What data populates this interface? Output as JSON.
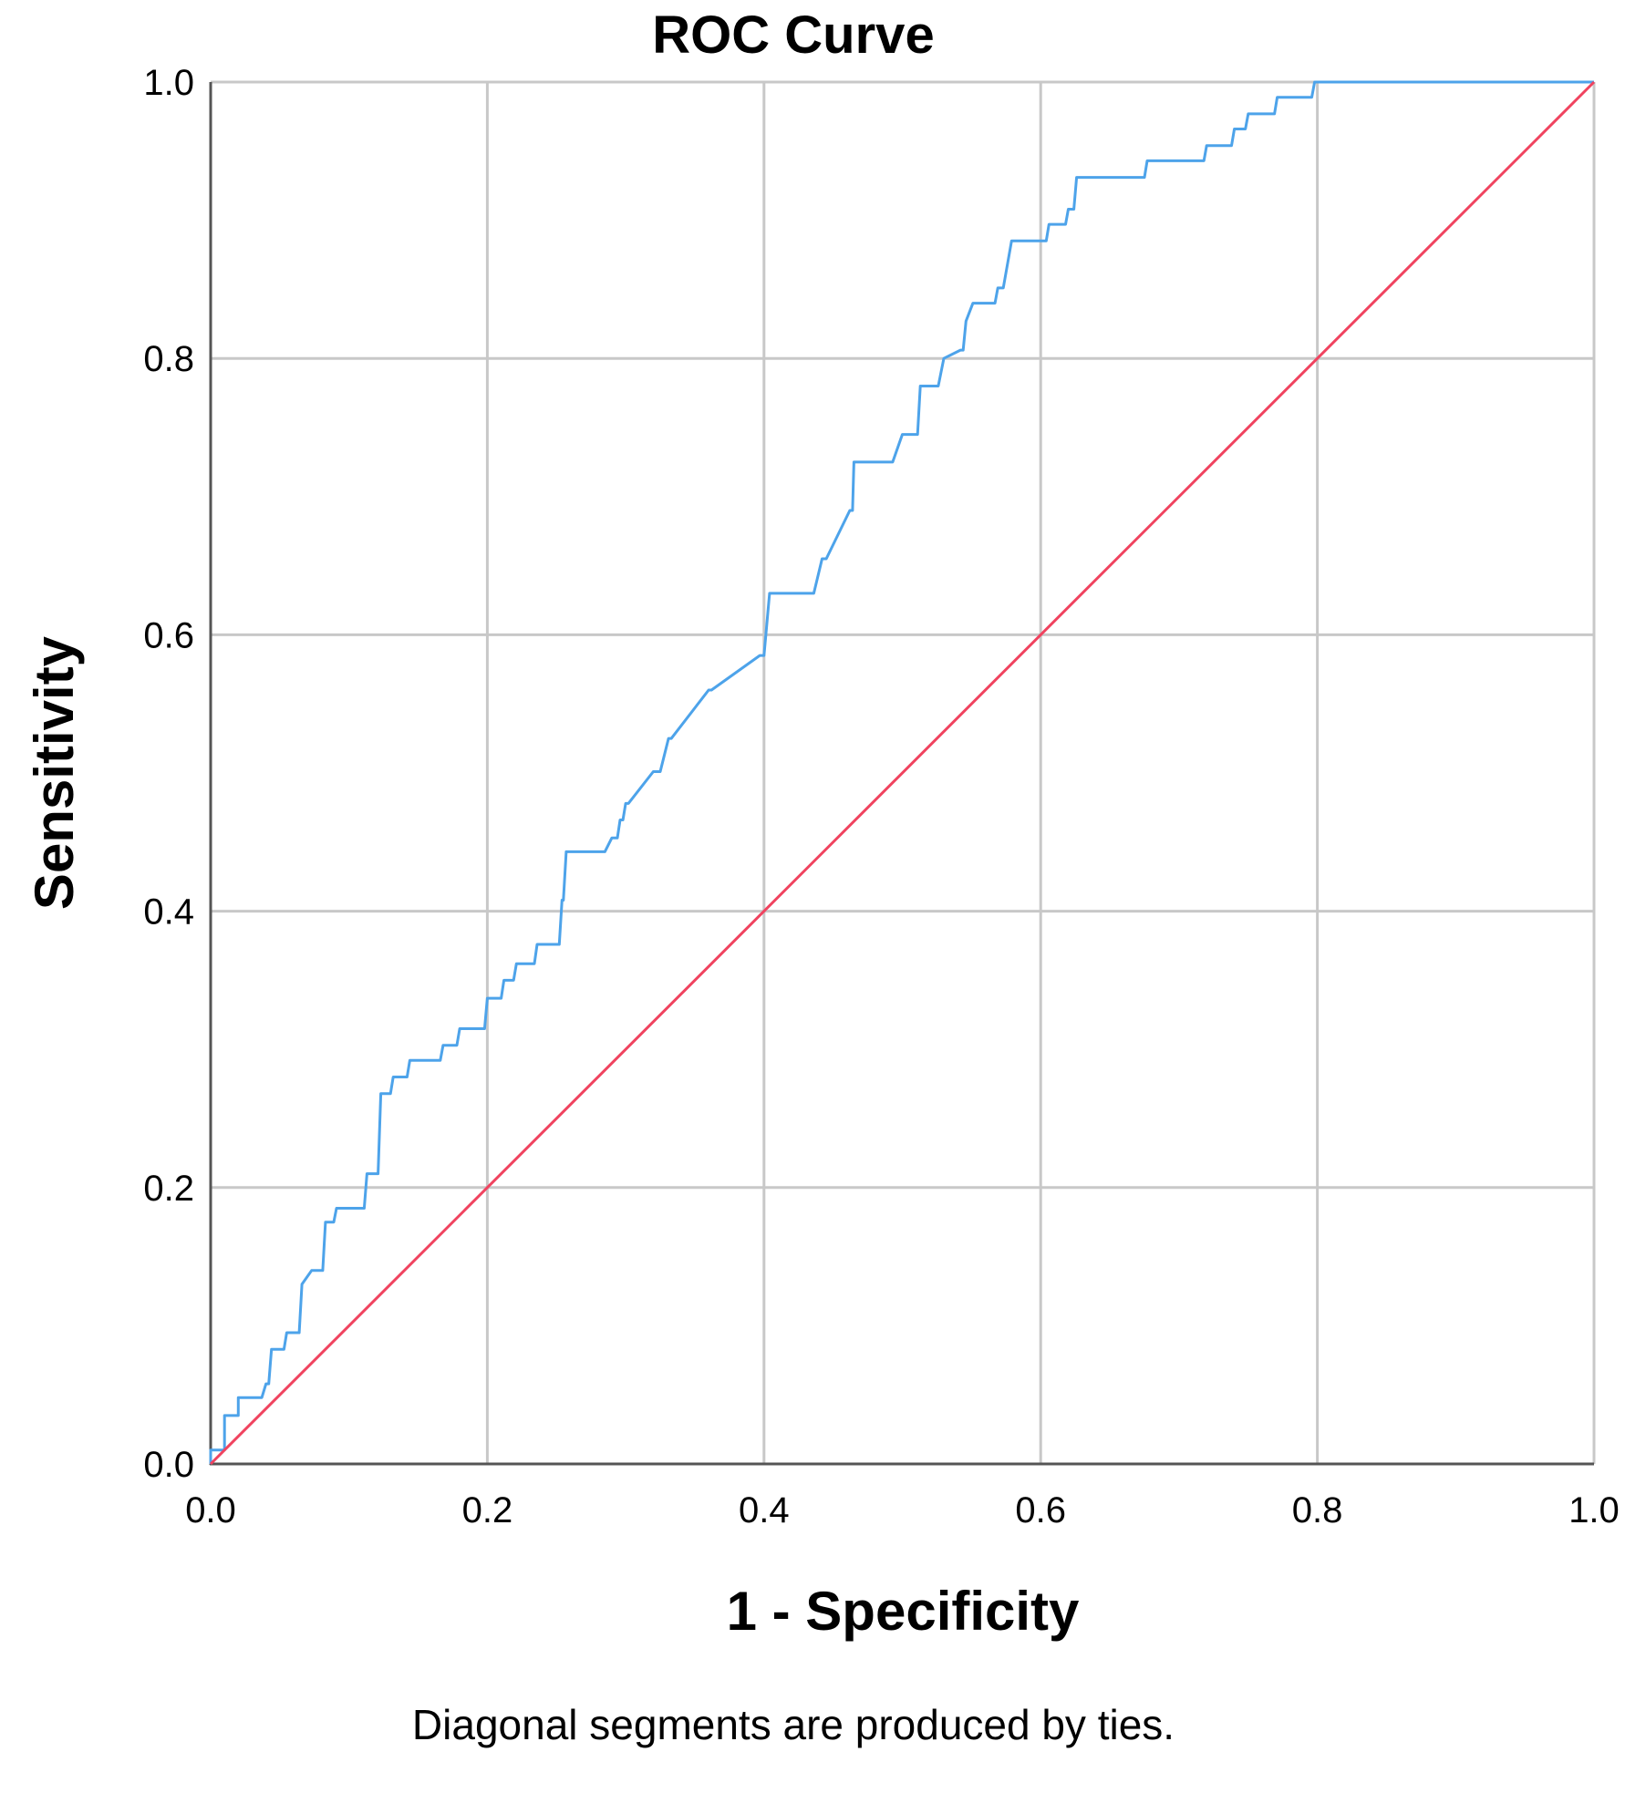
{
  "chart_data": {
    "type": "line",
    "title": "ROC Curve",
    "xlabel": "1 - Specificity",
    "ylabel": "Sensitivity",
    "footnote": "Diagonal segments are produced by ties.",
    "xlim": [
      0,
      1
    ],
    "ylim": [
      0,
      1
    ],
    "x_ticks": [
      "0.0",
      "0.2",
      "0.4",
      "0.6",
      "0.8",
      "1.0"
    ],
    "y_ticks": [
      "0.0",
      "0.2",
      "0.4",
      "0.6",
      "0.8",
      "1.0"
    ],
    "grid": true,
    "legend": "none",
    "colors": {
      "roc": "#4da3ea",
      "reference": "#f0435f",
      "grid": "#c8c8c8",
      "axis": "#555555"
    },
    "series": [
      {
        "x": [
          0.0,
          0.0,
          0.01,
          0.01,
          0.02,
          0.02,
          0.037,
          0.04,
          0.042,
          0.044,
          0.053,
          0.055,
          0.064,
          0.066,
          0.073,
          0.081,
          0.083,
          0.089,
          0.091,
          0.111,
          0.113,
          0.121,
          0.123,
          0.13,
          0.132,
          0.142,
          0.144,
          0.166,
          0.168,
          0.178,
          0.18,
          0.198,
          0.2,
          0.21,
          0.212,
          0.219,
          0.221,
          0.234,
          0.236,
          0.252,
          0.254,
          0.255,
          0.257,
          0.285,
          0.29,
          0.294,
          0.296,
          0.298,
          0.3,
          0.302,
          0.32,
          0.325,
          0.331,
          0.333,
          0.36,
          0.362,
          0.397,
          0.4,
          0.402,
          0.404,
          0.424,
          0.436,
          0.442,
          0.445,
          0.462,
          0.464,
          0.465,
          0.467,
          0.493,
          0.5,
          0.511,
          0.513,
          0.526,
          0.53,
          0.542,
          0.544,
          0.546,
          0.551,
          0.554,
          0.567,
          0.569,
          0.571,
          0.573,
          0.579,
          0.604,
          0.606,
          0.618,
          0.62,
          0.624,
          0.626,
          0.675,
          0.677,
          0.718,
          0.72,
          0.738,
          0.74,
          0.748,
          0.75,
          0.769,
          0.771,
          0.796,
          0.798,
          0.814,
          0.816,
          0.824,
          0.826,
          0.853,
          0.855,
          0.863,
          0.865,
          0.9,
          0.902,
          0.916,
          0.918,
          1.0
        ],
        "y": [
          0.0,
          0.01,
          0.01,
          0.035,
          0.035,
          0.048,
          0.048,
          0.058,
          0.058,
          0.083,
          0.083,
          0.095,
          0.095,
          0.13,
          0.14,
          0.14,
          0.175,
          0.175,
          0.185,
          0.185,
          0.21,
          0.21,
          0.268,
          0.268,
          0.28,
          0.28,
          0.292,
          0.292,
          0.303,
          0.303,
          0.315,
          0.315,
          0.337,
          0.337,
          0.35,
          0.35,
          0.362,
          0.362,
          0.376,
          0.376,
          0.408,
          0.408,
          0.443,
          0.443,
          0.453,
          0.453,
          0.466,
          0.466,
          0.478,
          0.478,
          0.501,
          0.501,
          0.525,
          0.525,
          0.56,
          0.56,
          0.585,
          0.585,
          0.607,
          0.63,
          0.63,
          0.63,
          0.655,
          0.655,
          0.69,
          0.69,
          0.725,
          0.725,
          0.725,
          0.745,
          0.745,
          0.78,
          0.78,
          0.8,
          0.806,
          0.806,
          0.827,
          0.84,
          0.84,
          0.84,
          0.851,
          0.851,
          0.851,
          0.885,
          0.885,
          0.897,
          0.897,
          0.908,
          0.908,
          0.931,
          0.931,
          0.943,
          0.943,
          0.954,
          0.954,
          0.966,
          0.966,
          0.977,
          0.977,
          0.989,
          0.989,
          1.0,
          1.0,
          1.0,
          1.0,
          1.0,
          1.0,
          1.0,
          1.0,
          1.0,
          1.0,
          1.0,
          1.0,
          1.0,
          1.0
        ]
      },
      {
        "x": [
          0,
          1
        ],
        "y": [
          0,
          1
        ]
      }
    ]
  }
}
